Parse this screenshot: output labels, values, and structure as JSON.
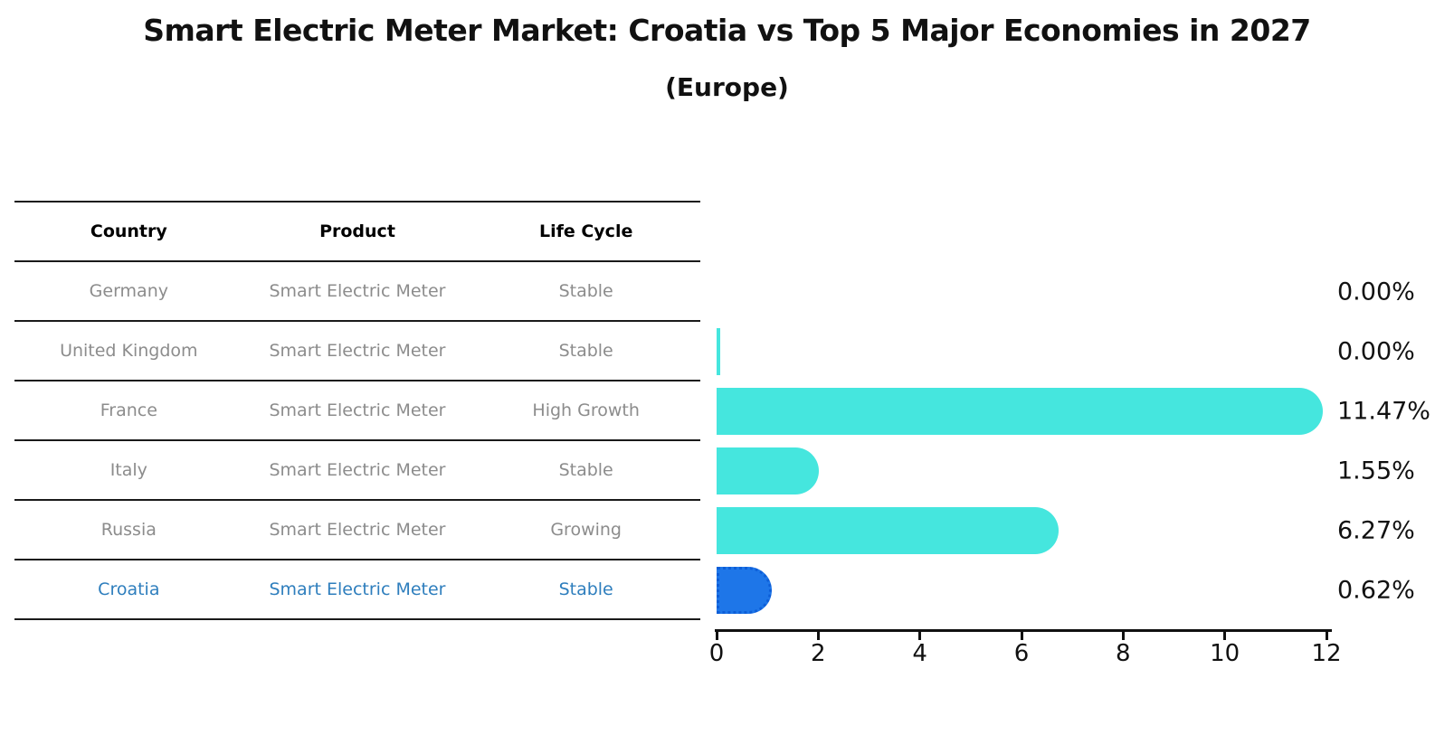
{
  "title": "Smart Electric Meter Market: Croatia vs Top 5 Major Economies in 2027",
  "subtitle": "(Europe)",
  "table": {
    "headers": [
      "Country",
      "Product",
      "Life Cycle"
    ],
    "rows": [
      {
        "country": "Germany",
        "product": "Smart Electric Meter",
        "life_cycle": "Stable",
        "highlighted": false
      },
      {
        "country": "United Kingdom",
        "product": "Smart Electric Meter",
        "life_cycle": "Stable",
        "highlighted": false
      },
      {
        "country": "France",
        "product": "Smart Electric Meter",
        "life_cycle": "High Growth",
        "highlighted": false
      },
      {
        "country": "Italy",
        "product": "Smart Electric Meter",
        "life_cycle": "Stable",
        "highlighted": false
      },
      {
        "country": "Russia",
        "product": "Smart Electric Meter",
        "life_cycle": "Growing",
        "highlighted": false
      },
      {
        "country": "Croatia",
        "product": "Smart Electric Meter",
        "life_cycle": "Stable",
        "highlighted": true
      }
    ]
  },
  "chart_data": {
    "type": "bar",
    "orientation": "horizontal",
    "title": "Smart Electric Meter Market: Croatia vs Top 5 Major Economies in 2027",
    "subtitle": "(Europe)",
    "categories": [
      "Germany",
      "United Kingdom",
      "France",
      "Italy",
      "Russia",
      "Croatia"
    ],
    "values": [
      0.0,
      0.0,
      11.47,
      1.55,
      6.27,
      0.62
    ],
    "value_labels": [
      "0.00%",
      "0.00%",
      "11.47%",
      "1.55%",
      "6.27%",
      "0.62%"
    ],
    "zero_bar_sliver": [
      false,
      true,
      false,
      false,
      false,
      false
    ],
    "highlight_index": 5,
    "xlim": [
      0,
      12
    ],
    "x_ticks": [
      0,
      2,
      4,
      6,
      8,
      10,
      12
    ],
    "grid": false,
    "bar_color": "#45e6de",
    "highlight_bar_color": "#1e76e8",
    "highlight_bar_border_color": "#0d5ed8"
  },
  "colors": {
    "background": "#ffffff",
    "title_text": "#111111",
    "table_header_text": "#000000",
    "table_row_text": "#8c8c8c",
    "highlight_row_text": "#2e7ebd",
    "table_line": "#1a1a1a",
    "axis": "#111111"
  }
}
